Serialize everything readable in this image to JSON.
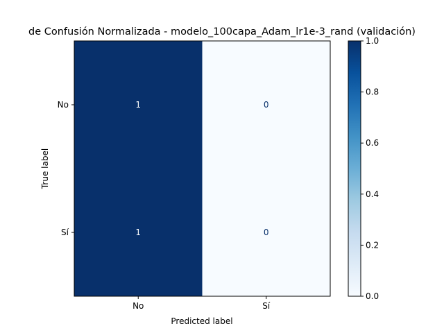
{
  "chart_data": {
    "type": "heatmap",
    "title": "de Confusión Normalizada - modelo_100capa_Adam_lr1e-3_rand (validación)",
    "xlabel": "Predicted label",
    "ylabel": "True label",
    "x_categories": [
      "No",
      "Sí"
    ],
    "y_categories": [
      "No",
      "Sí"
    ],
    "values": [
      [
        1,
        0
      ],
      [
        1,
        0
      ]
    ],
    "cell_labels": [
      [
        "1",
        "0"
      ],
      [
        "1",
        "0"
      ]
    ],
    "colormap": "Blues",
    "vmin": 0.0,
    "vmax": 1.0,
    "colorbar_ticks": [
      "0.0",
      "0.2",
      "0.4",
      "0.6",
      "0.8",
      "1.0"
    ],
    "colors": {
      "high": "#08306b",
      "low": "#f7fbff",
      "text_on_dark": "#ffffff",
      "text_on_light": "#08306b"
    }
  }
}
